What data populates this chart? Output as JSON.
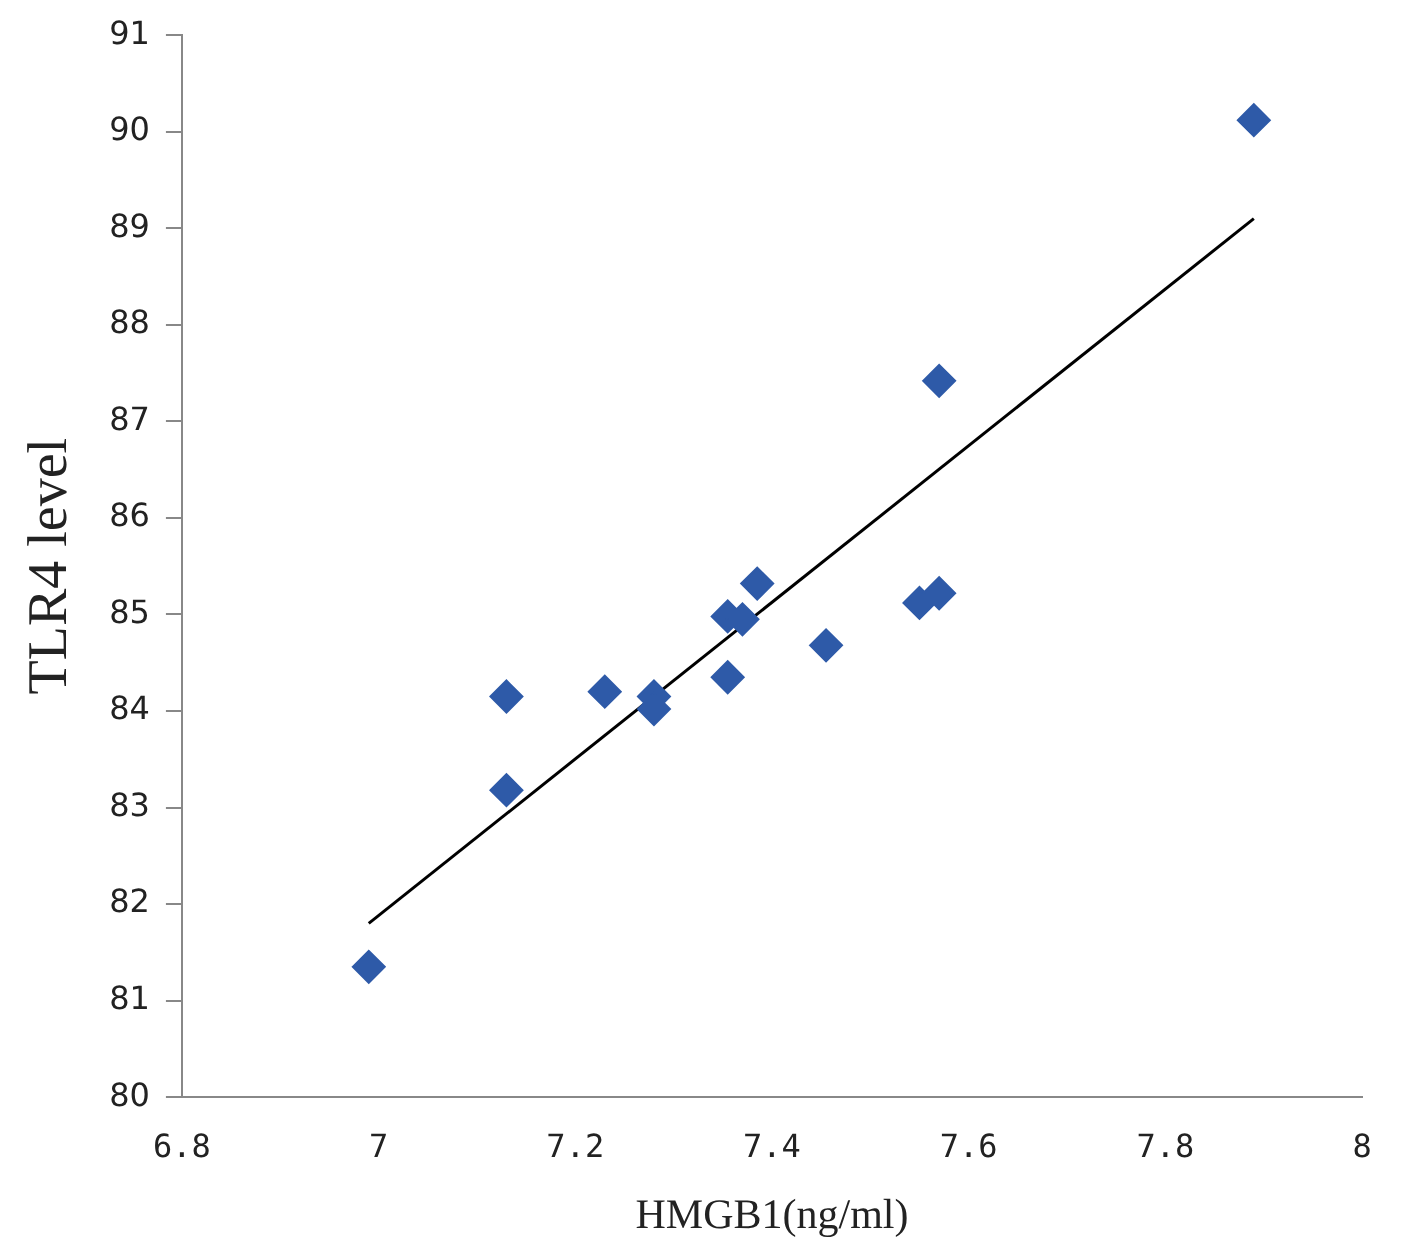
{
  "chart_data": {
    "type": "scatter",
    "xlabel": "HMGB1(ng/ml)",
    "ylabel": "TLR4 level",
    "xlim": [
      6.8,
      8
    ],
    "xticks": [
      {
        "value": 6.8,
        "label": "6.8"
      },
      {
        "value": 7,
        "label": "7"
      },
      {
        "value": 7.2,
        "label": "7.2"
      },
      {
        "value": 7.4,
        "label": "7.4"
      },
      {
        "value": 7.6,
        "label": "7.6"
      },
      {
        "value": 7.8,
        "label": "7.8"
      },
      {
        "value": 8,
        "label": "8"
      }
    ],
    "ylim": [
      80,
      91
    ],
    "yticks": [
      80,
      81,
      82,
      83,
      84,
      85,
      86,
      87,
      88,
      89,
      90,
      91
    ],
    "grid": false,
    "legend": false,
    "marker": "diamond",
    "series": [
      {
        "color": "#2e5aa8",
        "x": [
          6.99,
          7.13,
          7.13,
          7.23,
          7.28,
          7.28,
          7.355,
          7.355,
          7.37,
          7.385,
          7.455,
          7.55,
          7.57,
          7.57,
          7.89
        ],
        "values": [
          81.35,
          84.15,
          83.18,
          84.2,
          84.15,
          84.02,
          84.35,
          84.98,
          84.95,
          85.32,
          84.68,
          85.12,
          85.22,
          87.42,
          90.12
        ]
      },
      {
        "type": "line",
        "color": "#000000",
        "x": [
          6.99,
          7.89
        ],
        "values": [
          81.8,
          89.1
        ],
        "marker": "none"
      }
    ]
  }
}
